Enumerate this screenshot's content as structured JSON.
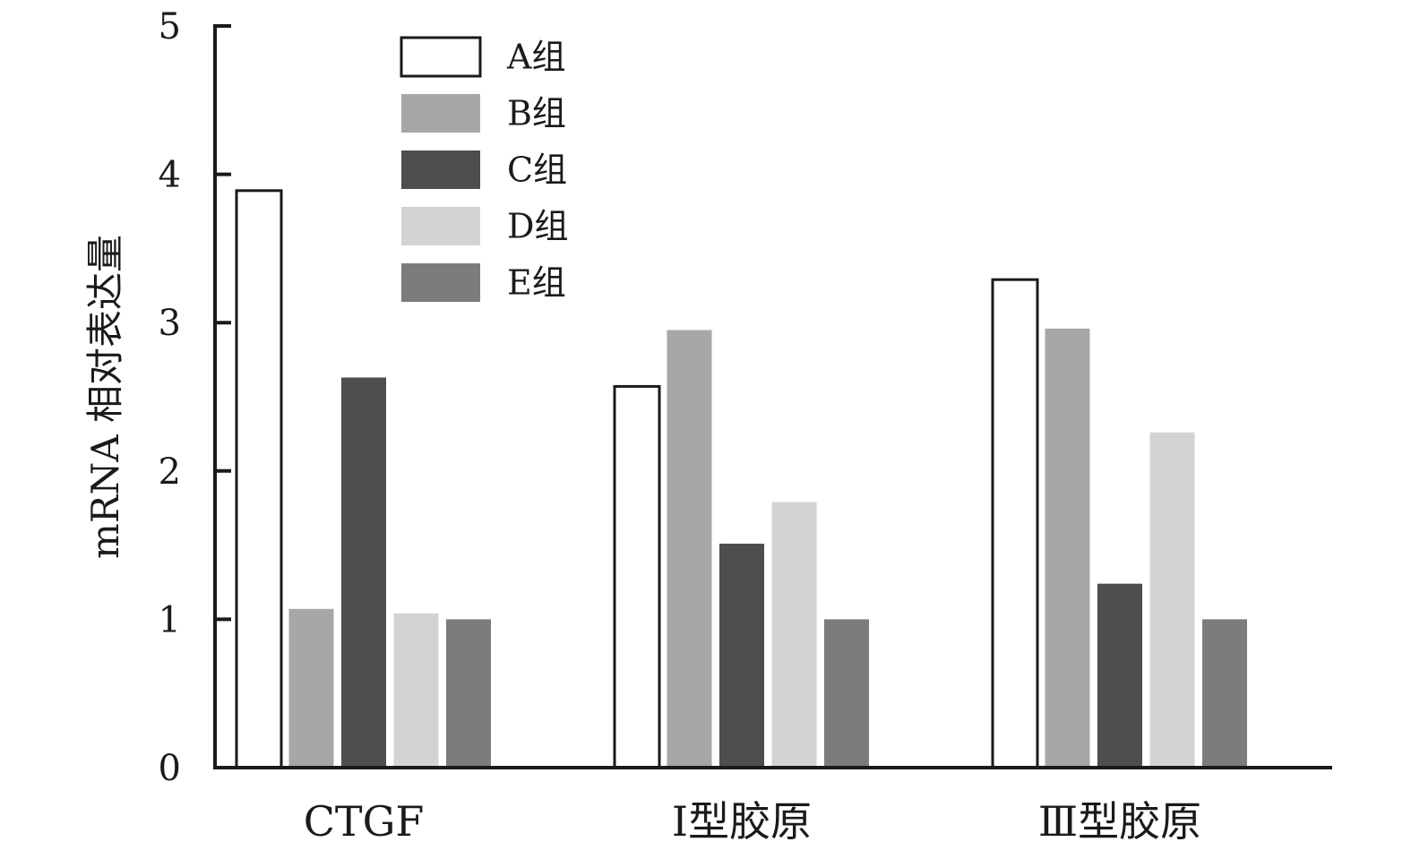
{
  "chart_data": {
    "type": "bar",
    "title": "",
    "xlabel": "",
    "ylabel": "mRNA 相对表达量",
    "ylim": [
      0,
      5
    ],
    "yticks": [
      0,
      1,
      2,
      3,
      4,
      5
    ],
    "grid": false,
    "legend_position": "top-left",
    "categories": [
      "CTGF",
      "Ⅰ型胶原",
      "Ⅲ型胶原"
    ],
    "series": [
      {
        "name": "A组",
        "color": "#ffffff",
        "stroke": "#1a1a1a",
        "values": [
          3.89,
          2.57,
          3.29
        ]
      },
      {
        "name": "B组",
        "color": "#a8a6a7",
        "stroke": "none",
        "values": [
          1.07,
          2.95,
          2.96
        ]
      },
      {
        "name": "C组",
        "color": "#4f4d4e",
        "stroke": "none",
        "values": [
          2.63,
          1.51,
          1.24
        ]
      },
      {
        "name": "D组",
        "color": "#d3d3d3",
        "stroke": "none",
        "values": [
          1.04,
          1.79,
          2.26
        ]
      },
      {
        "name": "E组",
        "color": "#7d7b7c",
        "stroke": "none",
        "values": [
          1.0,
          1.0,
          1.0
        ]
      }
    ]
  }
}
